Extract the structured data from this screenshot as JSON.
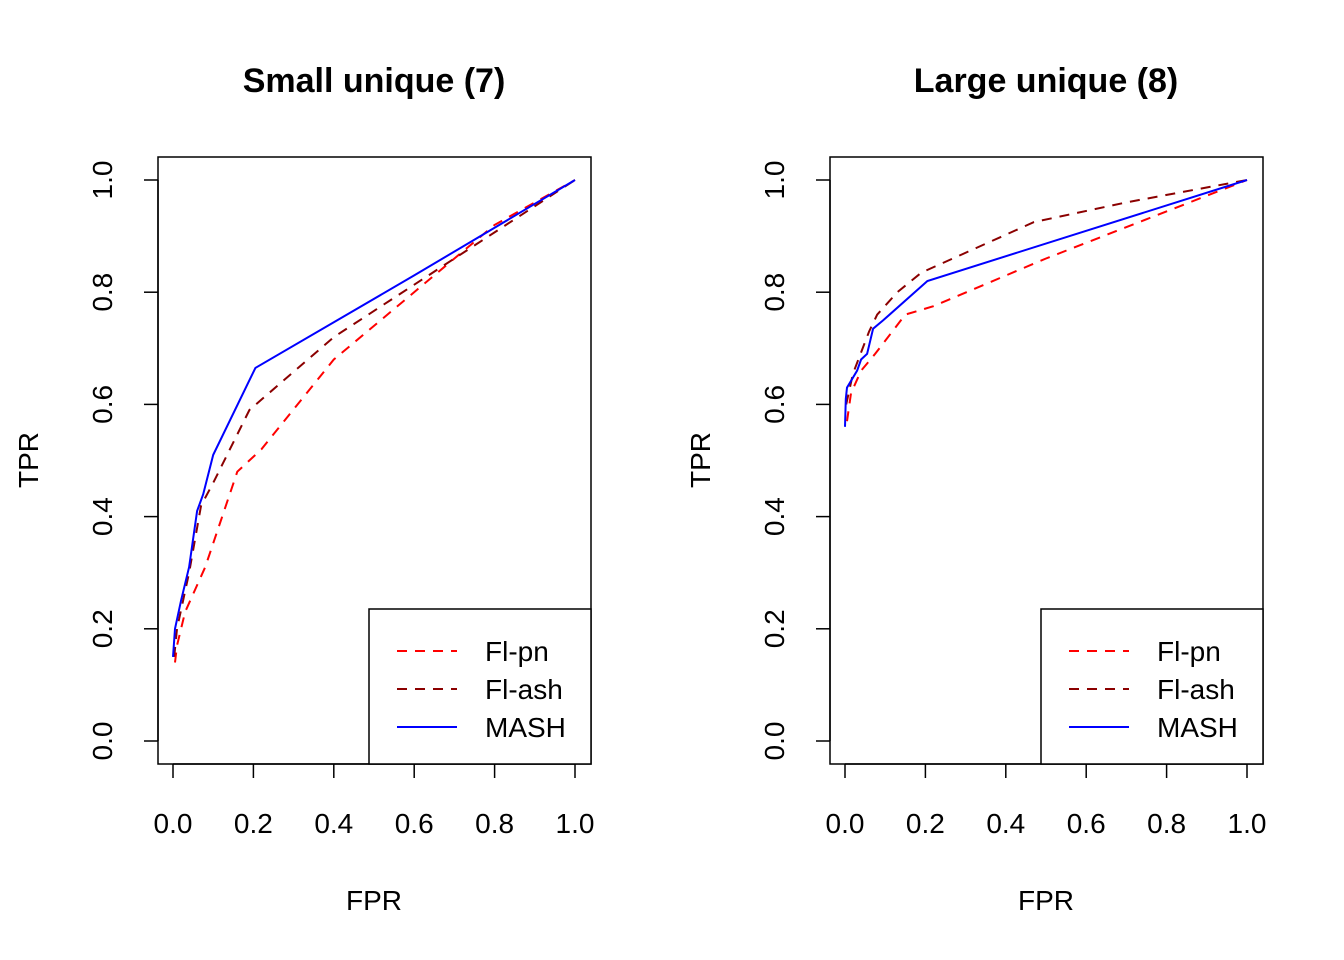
{
  "chart_data": [
    {
      "type": "line",
      "title": "Small unique (7)",
      "xlabel": "FPR",
      "ylabel": "TPR",
      "xlim": [
        0,
        1
      ],
      "ylim": [
        0,
        1
      ],
      "xticks": [
        "0.0",
        "0.2",
        "0.4",
        "0.6",
        "0.8",
        "1.0"
      ],
      "yticks": [
        "0.0",
        "0.2",
        "0.4",
        "0.6",
        "0.8",
        "1.0"
      ],
      "grid": false,
      "legend_position": "bottom-right",
      "series": [
        {
          "name": "Fl-pn",
          "color": "#ff0000",
          "style": "dashed",
          "x": [
            0.005,
            0.01,
            0.03,
            0.08,
            0.16,
            0.22,
            0.4,
            0.7,
            0.8,
            1.0
          ],
          "y": [
            0.14,
            0.17,
            0.23,
            0.31,
            0.48,
            0.52,
            0.68,
            0.86,
            0.92,
            1.0
          ]
        },
        {
          "name": "Fl-ash",
          "color": "#8b0000",
          "style": "dashed",
          "x": [
            0.003,
            0.01,
            0.04,
            0.07,
            0.1,
            0.19,
            0.4,
            0.7,
            1.0
          ],
          "y": [
            0.15,
            0.2,
            0.3,
            0.42,
            0.46,
            0.59,
            0.72,
            0.86,
            1.0
          ]
        },
        {
          "name": "MASH",
          "color": "#0000ff",
          "style": "solid",
          "x": [
            0.0,
            0.005,
            0.02,
            0.04,
            0.06,
            0.075,
            0.1,
            0.205,
            0.6,
            1.0
          ],
          "y": [
            0.15,
            0.2,
            0.25,
            0.31,
            0.41,
            0.44,
            0.51,
            0.665,
            0.83,
            1.0
          ]
        }
      ]
    },
    {
      "type": "line",
      "title": "Large unique (8)",
      "xlabel": "FPR",
      "ylabel": "TPR",
      "xlim": [
        0,
        1
      ],
      "ylim": [
        0,
        1
      ],
      "xticks": [
        "0.0",
        "0.2",
        "0.4",
        "0.6",
        "0.8",
        "1.0"
      ],
      "yticks": [
        "0.0",
        "0.2",
        "0.4",
        "0.6",
        "0.8",
        "1.0"
      ],
      "grid": false,
      "legend_position": "bottom-right",
      "series": [
        {
          "name": "Fl-pn",
          "color": "#ff0000",
          "style": "dashed",
          "x": [
            0.005,
            0.015,
            0.04,
            0.075,
            0.15,
            0.22,
            0.5,
            1.0
          ],
          "y": [
            0.57,
            0.62,
            0.66,
            0.69,
            0.76,
            0.775,
            0.86,
            1.0
          ]
        },
        {
          "name": "Fl-ash",
          "color": "#8b0000",
          "style": "dashed",
          "x": [
            0.003,
            0.02,
            0.06,
            0.08,
            0.13,
            0.19,
            0.47,
            0.7,
            1.0
          ],
          "y": [
            0.6,
            0.655,
            0.73,
            0.76,
            0.8,
            0.835,
            0.925,
            0.96,
            1.0
          ]
        },
        {
          "name": "MASH",
          "color": "#0000ff",
          "style": "solid",
          "x": [
            0.0,
            0.002,
            0.005,
            0.03,
            0.04,
            0.055,
            0.07,
            0.095,
            0.205,
            1.0
          ],
          "y": [
            0.56,
            0.61,
            0.63,
            0.66,
            0.68,
            0.69,
            0.735,
            0.75,
            0.82,
            1.0
          ]
        }
      ]
    }
  ]
}
